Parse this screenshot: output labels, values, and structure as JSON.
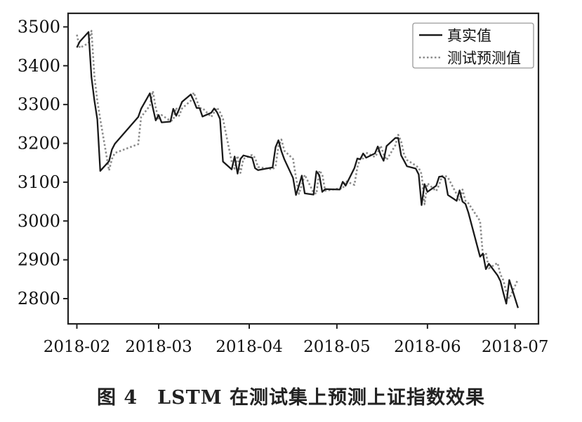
{
  "caption": {
    "figure_label": "图 4",
    "text": "LSTM 在测试集上预测上证指数效果"
  },
  "chart_data": {
    "type": "line",
    "title": "",
    "xlabel": "",
    "ylabel": "",
    "ylim": [
      2735,
      3535
    ],
    "yticks": [
      2800,
      2900,
      3000,
      3100,
      3200,
      3300,
      3400,
      3500
    ],
    "xlim": [
      "2018-01-29",
      "2018-07-09"
    ],
    "xticks": [
      "2018-02-01",
      "2018-03-01",
      "2018-04-01",
      "2018-05-01",
      "2018-06-01",
      "2018-07-01"
    ],
    "xtick_labels": [
      "2018-02",
      "2018-03",
      "2018-04",
      "2018-05",
      "2018-06",
      "2018-07"
    ],
    "grid": false,
    "legend_position": "top-right",
    "series": [
      {
        "name": "真实值",
        "style": "solid",
        "color": "#1a1a1a",
        "points": [
          [
            "2018-02-01",
            3447
          ],
          [
            "2018-02-02",
            3462
          ],
          [
            "2018-02-05",
            3487
          ],
          [
            "2018-02-06",
            3370
          ],
          [
            "2018-02-07",
            3310
          ],
          [
            "2018-02-08",
            3262
          ],
          [
            "2018-02-09",
            3129
          ],
          [
            "2018-02-12",
            3154
          ],
          [
            "2018-02-13",
            3184
          ],
          [
            "2018-02-14",
            3199
          ],
          [
            "2018-02-22",
            3268
          ],
          [
            "2018-02-23",
            3289
          ],
          [
            "2018-02-26",
            3329
          ],
          [
            "2018-02-27",
            3292
          ],
          [
            "2018-02-28",
            3259
          ],
          [
            "2018-03-01",
            3273
          ],
          [
            "2018-03-02",
            3254
          ],
          [
            "2018-03-05",
            3256
          ],
          [
            "2018-03-06",
            3289
          ],
          [
            "2018-03-07",
            3271
          ],
          [
            "2018-03-08",
            3288
          ],
          [
            "2018-03-09",
            3307
          ],
          [
            "2018-03-12",
            3326
          ],
          [
            "2018-03-13",
            3310
          ],
          [
            "2018-03-14",
            3291
          ],
          [
            "2018-03-15",
            3291
          ],
          [
            "2018-03-16",
            3269
          ],
          [
            "2018-03-19",
            3279
          ],
          [
            "2018-03-20",
            3290
          ],
          [
            "2018-03-21",
            3280
          ],
          [
            "2018-03-22",
            3263
          ],
          [
            "2018-03-23",
            3153
          ],
          [
            "2018-03-26",
            3133
          ],
          [
            "2018-03-27",
            3166
          ],
          [
            "2018-03-28",
            3122
          ],
          [
            "2018-03-29",
            3160
          ],
          [
            "2018-03-30",
            3169
          ],
          [
            "2018-04-02",
            3163
          ],
          [
            "2018-04-03",
            3136
          ],
          [
            "2018-04-04",
            3131
          ],
          [
            "2018-04-09",
            3138
          ],
          [
            "2018-04-10",
            3190
          ],
          [
            "2018-04-11",
            3208
          ],
          [
            "2018-04-12",
            3180
          ],
          [
            "2018-04-13",
            3159
          ],
          [
            "2018-04-16",
            3111
          ],
          [
            "2018-04-17",
            3067
          ],
          [
            "2018-04-18",
            3091
          ],
          [
            "2018-04-19",
            3117
          ],
          [
            "2018-04-20",
            3071
          ],
          [
            "2018-04-23",
            3068
          ],
          [
            "2018-04-24",
            3128
          ],
          [
            "2018-04-25",
            3118
          ],
          [
            "2018-04-26",
            3075
          ],
          [
            "2018-04-27",
            3082
          ],
          [
            "2018-05-02",
            3081
          ],
          [
            "2018-05-03",
            3101
          ],
          [
            "2018-05-04",
            3091
          ],
          [
            "2018-05-07",
            3136
          ],
          [
            "2018-05-08",
            3161
          ],
          [
            "2018-05-09",
            3159
          ],
          [
            "2018-05-10",
            3174
          ],
          [
            "2018-05-11",
            3163
          ],
          [
            "2018-05-14",
            3174
          ],
          [
            "2018-05-15",
            3192
          ],
          [
            "2018-05-16",
            3170
          ],
          [
            "2018-05-17",
            3155
          ],
          [
            "2018-05-18",
            3193
          ],
          [
            "2018-05-21",
            3214
          ],
          [
            "2018-05-22",
            3214
          ],
          [
            "2018-05-23",
            3169
          ],
          [
            "2018-05-24",
            3155
          ],
          [
            "2018-05-25",
            3141
          ],
          [
            "2018-05-28",
            3135
          ],
          [
            "2018-05-29",
            3120
          ],
          [
            "2018-05-30",
            3041
          ],
          [
            "2018-05-31",
            3095
          ],
          [
            "2018-06-01",
            3075
          ],
          [
            "2018-06-04",
            3091
          ],
          [
            "2018-06-05",
            3114
          ],
          [
            "2018-06-06",
            3115
          ],
          [
            "2018-06-07",
            3110
          ],
          [
            "2018-06-08",
            3067
          ],
          [
            "2018-06-11",
            3052
          ],
          [
            "2018-06-12",
            3079
          ],
          [
            "2018-06-13",
            3050
          ],
          [
            "2018-06-14",
            3044
          ],
          [
            "2018-06-15",
            3022
          ],
          [
            "2018-06-19",
            2908
          ],
          [
            "2018-06-20",
            2916
          ],
          [
            "2018-06-21",
            2876
          ],
          [
            "2018-06-22",
            2890
          ],
          [
            "2018-06-25",
            2860
          ],
          [
            "2018-06-26",
            2845
          ],
          [
            "2018-06-27",
            2814
          ],
          [
            "2018-06-28",
            2787
          ],
          [
            "2018-06-29",
            2848
          ],
          [
            "2018-07-02",
            2776
          ]
        ]
      },
      {
        "name": "测试预测值",
        "style": "dotted",
        "color": "#8a8a8a",
        "points": [
          [
            "2018-02-01",
            3480
          ],
          [
            "2018-02-02",
            3446
          ],
          [
            "2018-02-05",
            3458
          ],
          [
            "2018-02-06",
            3490
          ],
          [
            "2018-02-07",
            3372
          ],
          [
            "2018-02-08",
            3310
          ],
          [
            "2018-02-09",
            3262
          ],
          [
            "2018-02-12",
            3130
          ],
          [
            "2018-02-13",
            3160
          ],
          [
            "2018-02-14",
            3175
          ],
          [
            "2018-02-22",
            3198
          ],
          [
            "2018-02-23",
            3268
          ],
          [
            "2018-02-26",
            3297
          ],
          [
            "2018-02-27",
            3335
          ],
          [
            "2018-02-28",
            3292
          ],
          [
            "2018-03-01",
            3260
          ],
          [
            "2018-03-02",
            3273
          ],
          [
            "2018-03-05",
            3258
          ],
          [
            "2018-03-06",
            3260
          ],
          [
            "2018-03-07",
            3292
          ],
          [
            "2018-03-08",
            3271
          ],
          [
            "2018-03-09",
            3290
          ],
          [
            "2018-03-12",
            3310
          ],
          [
            "2018-03-13",
            3331
          ],
          [
            "2018-03-14",
            3312
          ],
          [
            "2018-03-15",
            3290
          ],
          [
            "2018-03-16",
            3291
          ],
          [
            "2018-03-19",
            3268
          ],
          [
            "2018-03-20",
            3280
          ],
          [
            "2018-03-21",
            3292
          ],
          [
            "2018-03-22",
            3280
          ],
          [
            "2018-03-23",
            3263
          ],
          [
            "2018-03-26",
            3153
          ],
          [
            "2018-03-27",
            3135
          ],
          [
            "2018-03-28",
            3168
          ],
          [
            "2018-03-29",
            3124
          ],
          [
            "2018-03-30",
            3160
          ],
          [
            "2018-04-02",
            3170
          ],
          [
            "2018-04-03",
            3163
          ],
          [
            "2018-04-04",
            3139
          ],
          [
            "2018-04-09",
            3133
          ],
          [
            "2018-04-10",
            3141
          ],
          [
            "2018-04-11",
            3192
          ],
          [
            "2018-04-12",
            3210
          ],
          [
            "2018-04-13",
            3181
          ],
          [
            "2018-04-16",
            3160
          ],
          [
            "2018-04-17",
            3112
          ],
          [
            "2018-04-18",
            3070
          ],
          [
            "2018-04-19",
            3093
          ],
          [
            "2018-04-20",
            3119
          ],
          [
            "2018-04-23",
            3073
          ],
          [
            "2018-04-24",
            3070
          ],
          [
            "2018-04-25",
            3130
          ],
          [
            "2018-04-26",
            3120
          ],
          [
            "2018-04-27",
            3078
          ],
          [
            "2018-05-02",
            3084
          ],
          [
            "2018-05-03",
            3083
          ],
          [
            "2018-05-04",
            3103
          ],
          [
            "2018-05-07",
            3093
          ],
          [
            "2018-05-08",
            3138
          ],
          [
            "2018-05-09",
            3162
          ],
          [
            "2018-05-10",
            3161
          ],
          [
            "2018-05-11",
            3176
          ],
          [
            "2018-05-14",
            3165
          ],
          [
            "2018-05-15",
            3176
          ],
          [
            "2018-05-16",
            3194
          ],
          [
            "2018-05-17",
            3172
          ],
          [
            "2018-05-18",
            3157
          ],
          [
            "2018-05-21",
            3195
          ],
          [
            "2018-05-22",
            3222
          ],
          [
            "2018-05-23",
            3205
          ],
          [
            "2018-05-24",
            3171
          ],
          [
            "2018-05-25",
            3157
          ],
          [
            "2018-05-28",
            3143
          ],
          [
            "2018-05-29",
            3137
          ],
          [
            "2018-05-30",
            3121
          ],
          [
            "2018-05-31",
            3043
          ],
          [
            "2018-06-01",
            3097
          ],
          [
            "2018-06-04",
            3077
          ],
          [
            "2018-06-05",
            3093
          ],
          [
            "2018-06-06",
            3116
          ],
          [
            "2018-06-07",
            3117
          ],
          [
            "2018-06-08",
            3112
          ],
          [
            "2018-06-11",
            3069
          ],
          [
            "2018-06-12",
            3054
          ],
          [
            "2018-06-13",
            3081
          ],
          [
            "2018-06-14",
            3052
          ],
          [
            "2018-06-15",
            3046
          ],
          [
            "2018-06-19",
            3000
          ],
          [
            "2018-06-20",
            2910
          ],
          [
            "2018-06-21",
            2918
          ],
          [
            "2018-06-22",
            2878
          ],
          [
            "2018-06-25",
            2892
          ],
          [
            "2018-06-26",
            2862
          ],
          [
            "2018-06-27",
            2847
          ],
          [
            "2018-06-28",
            2816
          ],
          [
            "2018-06-29",
            2800
          ],
          [
            "2018-07-02",
            2850
          ]
        ]
      }
    ]
  }
}
